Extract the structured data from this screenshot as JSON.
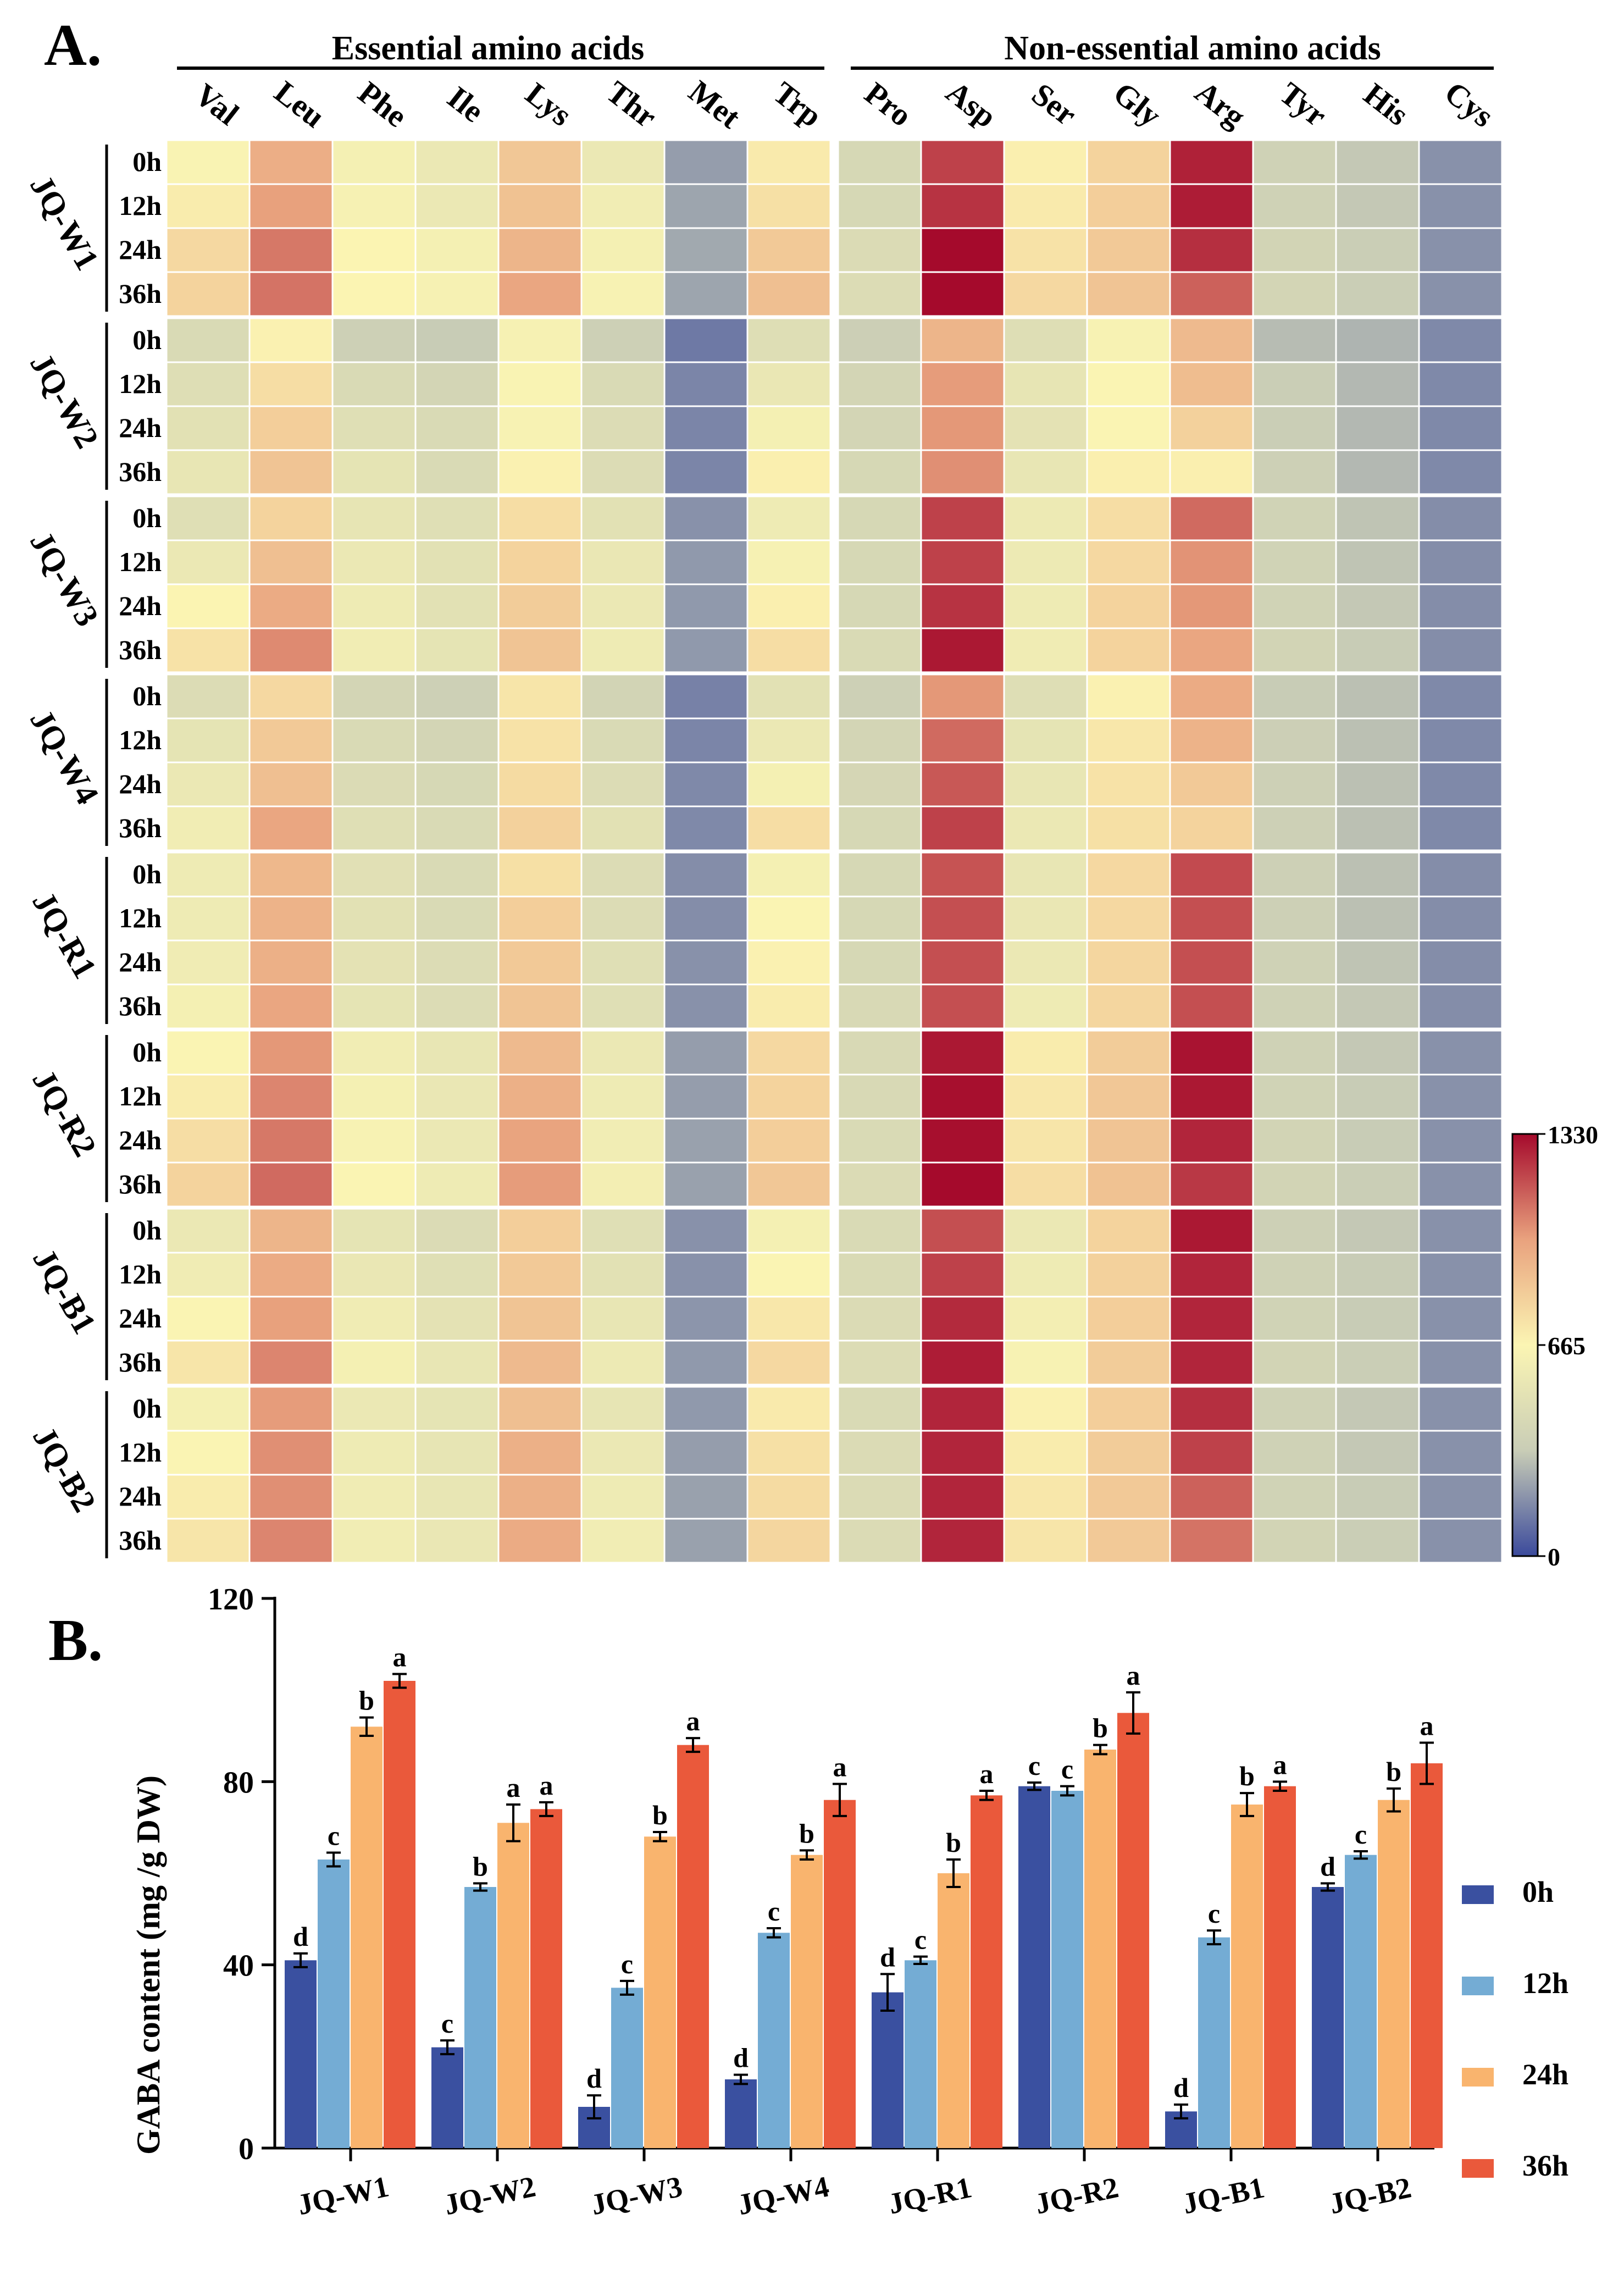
{
  "colors": {
    "scale": [
      "#3b4a9c",
      "#c9cdb6",
      "#fbf5b3",
      "#e9a27e",
      "#a50a2c"
    ],
    "bars": {
      "0h": "#3a50a0",
      "12h": "#74acd4",
      "24h": "#f9b46e",
      "36h": "#ea593b"
    }
  },
  "chart_data": [
    {
      "type": "heatmap",
      "panel_label": "A.",
      "group_headers": [
        "Essential amino acids",
        "Non-essential amino acids"
      ],
      "columns": [
        "Val",
        "Leu",
        "Phe",
        "Ile",
        "Lys",
        "Thr",
        "Met",
        "Trp",
        "Pro",
        "Asp",
        "Ser",
        "Gly",
        "Arg",
        "Tyr",
        "His",
        "Cys"
      ],
      "row_groups": [
        "JQ-W1",
        "JQ-W2",
        "JQ-W3",
        "JQ-W4",
        "JQ-R1",
        "JQ-R2",
        "JQ-B1",
        "JQ-B2"
      ],
      "row_times": [
        "0h",
        "12h",
        "24h",
        "36h"
      ],
      "colorbar": {
        "min": 0,
        "max": 1330,
        "ticks": [
          "1330",
          "665",
          "0"
        ]
      },
      "values": [
        [
          [
            650,
            950,
            620,
            560,
            850,
            560,
            210,
            710,
            420,
            1210,
            690,
            800,
            1280,
            370,
            320,
            180
          ],
          [
            700,
            1000,
            630,
            560,
            870,
            600,
            230,
            750,
            420,
            1240,
            710,
            820,
            1290,
            370,
            320,
            180
          ],
          [
            780,
            1090,
            670,
            620,
            920,
            620,
            240,
            840,
            450,
            1330,
            740,
            840,
            1250,
            390,
            340,
            180
          ],
          [
            800,
            1100,
            670,
            630,
            980,
            640,
            230,
            880,
            460,
            1330,
            780,
            860,
            1140,
            400,
            340,
            180
          ]
        ],
        [
          [
            440,
            680,
            360,
            330,
            630,
            360,
            120,
            470,
            350,
            920,
            470,
            640,
            900,
            290,
            270,
            160
          ],
          [
            470,
            760,
            440,
            400,
            650,
            440,
            150,
            550,
            400,
            1010,
            530,
            660,
            890,
            340,
            280,
            160
          ],
          [
            500,
            820,
            480,
            440,
            640,
            460,
            150,
            620,
            400,
            1020,
            510,
            660,
            810,
            340,
            280,
            160
          ],
          [
            540,
            860,
            520,
            440,
            680,
            460,
            150,
            690,
            420,
            1040,
            540,
            690,
            690,
            360,
            280,
            160
          ]
        ],
        [
          [
            480,
            800,
            530,
            480,
            760,
            500,
            180,
            580,
            420,
            1210,
            570,
            760,
            1120,
            380,
            310,
            170
          ],
          [
            560,
            880,
            560,
            500,
            800,
            550,
            200,
            630,
            420,
            1210,
            570,
            780,
            1030,
            380,
            310,
            170
          ],
          [
            670,
            960,
            580,
            500,
            830,
            560,
            200,
            690,
            420,
            1240,
            580,
            800,
            1020,
            380,
            320,
            170
          ],
          [
            740,
            1050,
            600,
            520,
            860,
            580,
            200,
            760,
            440,
            1300,
            590,
            800,
            980,
            390,
            330,
            170
          ]
        ],
        [
          [
            460,
            780,
            400,
            360,
            730,
            390,
            140,
            500,
            360,
            1020,
            470,
            680,
            960,
            330,
            300,
            160
          ],
          [
            520,
            840,
            440,
            400,
            740,
            440,
            150,
            560,
            400,
            1120,
            520,
            720,
            930,
            350,
            300,
            160
          ],
          [
            560,
            880,
            450,
            420,
            770,
            460,
            160,
            620,
            410,
            1160,
            540,
            740,
            840,
            360,
            300,
            160
          ],
          [
            600,
            980,
            480,
            440,
            810,
            500,
            160,
            760,
            420,
            1210,
            560,
            750,
            800,
            360,
            300,
            160
          ]
        ],
        [
          [
            580,
            910,
            490,
            440,
            750,
            460,
            170,
            620,
            420,
            1170,
            540,
            780,
            1190,
            360,
            300,
            170
          ],
          [
            580,
            930,
            500,
            440,
            820,
            460,
            170,
            660,
            420,
            1180,
            550,
            780,
            1180,
            360,
            300,
            170
          ],
          [
            590,
            940,
            510,
            460,
            840,
            480,
            180,
            680,
            420,
            1180,
            560,
            790,
            1180,
            370,
            310,
            170
          ],
          [
            620,
            980,
            520,
            460,
            860,
            480,
            180,
            700,
            430,
            1180,
            580,
            790,
            1180,
            370,
            320,
            170
          ]
        ],
        [
          [
            660,
            1020,
            600,
            540,
            900,
            560,
            210,
            780,
            430,
            1300,
            700,
            830,
            1310,
            370,
            320,
            180
          ],
          [
            700,
            1060,
            620,
            550,
            940,
            580,
            210,
            800,
            430,
            1320,
            720,
            850,
            1300,
            380,
            330,
            180
          ],
          [
            760,
            1090,
            640,
            560,
            990,
            600,
            220,
            820,
            440,
            1320,
            730,
            860,
            1270,
            390,
            330,
            180
          ],
          [
            800,
            1120,
            660,
            580,
            1010,
            610,
            220,
            850,
            450,
            1330,
            760,
            870,
            1230,
            390,
            340,
            180
          ]
        ],
        [
          [
            560,
            920,
            520,
            450,
            820,
            480,
            180,
            620,
            440,
            1180,
            560,
            800,
            1300,
            360,
            320,
            180
          ],
          [
            590,
            960,
            550,
            480,
            840,
            500,
            180,
            660,
            440,
            1210,
            580,
            810,
            1270,
            370,
            330,
            180
          ],
          [
            660,
            1000,
            590,
            510,
            860,
            540,
            190,
            720,
            450,
            1260,
            610,
            820,
            1270,
            380,
            330,
            180
          ],
          [
            730,
            1060,
            620,
            540,
            900,
            570,
            200,
            780,
            460,
            1290,
            640,
            830,
            1270,
            390,
            340,
            180
          ]
        ],
        [
          [
            620,
            1010,
            560,
            520,
            880,
            530,
            200,
            710,
            440,
            1270,
            680,
            820,
            1250,
            370,
            320,
            180
          ],
          [
            660,
            1040,
            580,
            530,
            940,
            560,
            210,
            750,
            450,
            1270,
            700,
            830,
            1210,
            370,
            320,
            180
          ],
          [
            700,
            1040,
            590,
            540,
            940,
            580,
            220,
            770,
            450,
            1270,
            720,
            840,
            1140,
            380,
            330,
            180
          ],
          [
            730,
            1060,
            600,
            550,
            960,
            600,
            220,
            790,
            450,
            1270,
            730,
            840,
            1100,
            390,
            340,
            180
          ]
        ]
      ]
    },
    {
      "type": "bar",
      "panel_label": "B.",
      "ylabel": "GABA content (mg /g DW)",
      "ylim": [
        0,
        120
      ],
      "yticks": [
        "0",
        "40",
        "80",
        "120"
      ],
      "categories": [
        "JQ-W1",
        "JQ-W2",
        "JQ-W3",
        "JQ-W4",
        "JQ-R1",
        "JQ-R2",
        "JQ-B1",
        "JQ-B2"
      ],
      "legend": [
        "0h",
        "12h",
        "24h",
        "36h"
      ],
      "series": [
        {
          "name": "0h",
          "values": [
            41,
            22,
            9,
            15,
            34,
            79,
            8,
            57
          ],
          "errors": [
            1.5,
            1.5,
            2.5,
            1,
            4,
            0.8,
            1.5,
            0.8
          ],
          "letters": [
            "d",
            "c",
            "d",
            "d",
            "d",
            "c",
            "d",
            "d"
          ]
        },
        {
          "name": "12h",
          "values": [
            63,
            57,
            35,
            47,
            41,
            78,
            46,
            64
          ],
          "errors": [
            1.5,
            0.8,
            1.5,
            1,
            0.8,
            1,
            1.5,
            0.8
          ],
          "letters": [
            "c",
            "b",
            "c",
            "c",
            "c",
            "c",
            "c",
            "c"
          ]
        },
        {
          "name": "24h",
          "values": [
            92,
            71,
            68,
            64,
            60,
            87,
            75,
            76
          ],
          "errors": [
            2,
            4,
            1,
            1,
            3,
            1,
            2.5,
            2.5
          ],
          "letters": [
            "b",
            "a",
            "b",
            "b",
            "b",
            "b",
            "b",
            "b"
          ]
        },
        {
          "name": "36h",
          "values": [
            102,
            74,
            88,
            76,
            77,
            95,
            79,
            84
          ],
          "errors": [
            1.5,
            1.5,
            1.5,
            3.5,
            1,
            4.5,
            1,
            4.5
          ],
          "letters": [
            "a",
            "a",
            "a",
            "a",
            "a",
            "a",
            "a",
            "a"
          ]
        }
      ]
    }
  ]
}
